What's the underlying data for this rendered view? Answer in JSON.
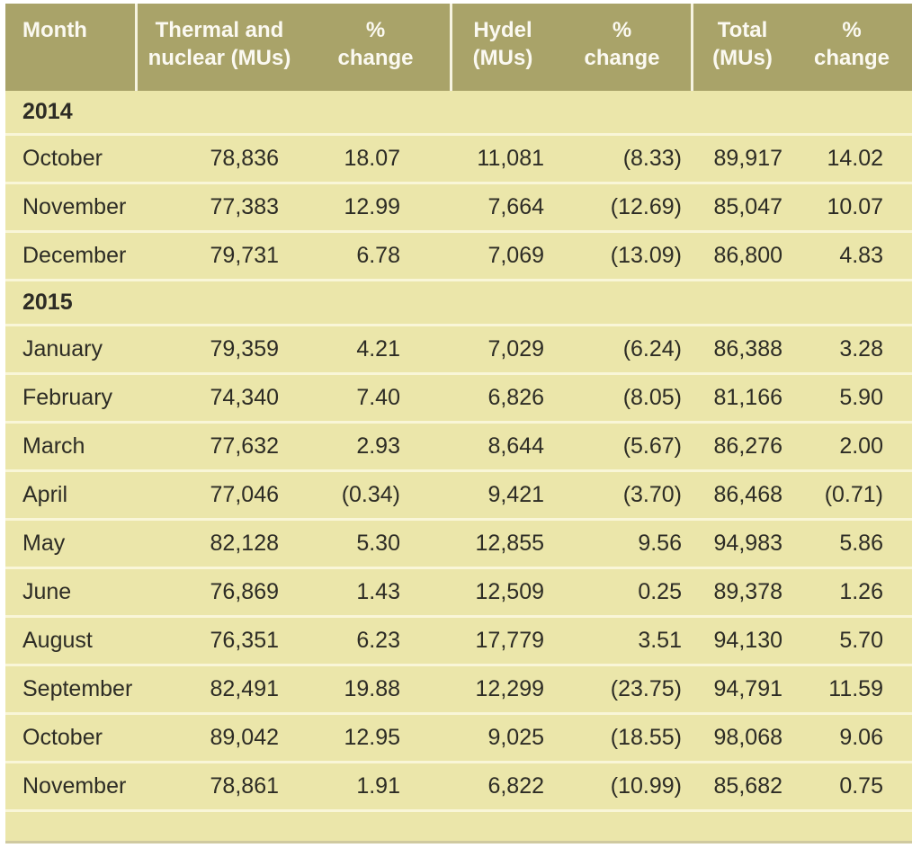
{
  "colors": {
    "page_bg": "#ffffff",
    "header_bg": "#a9a369",
    "header_text": "#fbf9f1",
    "body_bg": "#ebe6aa",
    "row_line": "#f9f6d8",
    "divider": "#f6f3e0",
    "text": "#2d2c25",
    "bottom_edge": "#cfc9a0"
  },
  "table": {
    "header": [
      {
        "line1": "Month",
        "line2": ""
      },
      {
        "line1": "Thermal and",
        "line2": "nuclear (MUs)"
      },
      {
        "line1": "%",
        "line2": "change"
      },
      {
        "line1": "Hydel",
        "line2": "(MUs)"
      },
      {
        "line1": "%",
        "line2": "change"
      },
      {
        "line1": "Total",
        "line2": "(MUs)"
      },
      {
        "line1": "%",
        "line2": "change"
      }
    ],
    "sections": [
      {
        "year": "2014",
        "rows": [
          {
            "month": "October",
            "values": [
              "78,836",
              "18.07",
              "11,081",
              "(8.33)",
              "89,917",
              "14.02"
            ]
          },
          {
            "month": "November",
            "values": [
              "77,383",
              "12.99",
              "7,664",
              "(12.69)",
              "85,047",
              "10.07"
            ]
          },
          {
            "month": "December",
            "values": [
              "79,731",
              "6.78",
              "7,069",
              "(13.09)",
              "86,800",
              "4.83"
            ]
          }
        ]
      },
      {
        "year": "2015",
        "rows": [
          {
            "month": "January",
            "values": [
              "79,359",
              "4.21",
              "7,029",
              "(6.24)",
              "86,388",
              "3.28"
            ]
          },
          {
            "month": "February",
            "values": [
              "74,340",
              "7.40",
              "6,826",
              "(8.05)",
              "81,166",
              "5.90"
            ]
          },
          {
            "month": "March",
            "values": [
              "77,632",
              "2.93",
              "8,644",
              "(5.67)",
              "86,276",
              "2.00"
            ]
          },
          {
            "month": "April",
            "values": [
              "77,046",
              "(0.34)",
              "9,421",
              "(3.70)",
              "86,468",
              "(0.71)"
            ]
          },
          {
            "month": "May",
            "values": [
              "82,128",
              "5.30",
              "12,855",
              "9.56",
              "94,983",
              "5.86"
            ]
          },
          {
            "month": "June",
            "values": [
              "76,869",
              "1.43",
              "12,509",
              "0.25",
              "89,378",
              "1.26"
            ]
          },
          {
            "month": "August",
            "values": [
              "76,351",
              "6.23",
              "17,779",
              "3.51",
              "94,130",
              "5.70"
            ]
          },
          {
            "month": "September",
            "values": [
              "82,491",
              "19.88",
              "12,299",
              "(23.75)",
              "94,791",
              "11.59"
            ]
          },
          {
            "month": "October",
            "values": [
              "89,042",
              "12.95",
              "9,025",
              "(18.55)",
              "98,068",
              "9.06"
            ]
          },
          {
            "month": "November",
            "values": [
              "78,861",
              "1.91",
              "6,822",
              "(10.99)",
              "85,682",
              "0.75"
            ]
          }
        ]
      }
    ]
  },
  "chart_data": {
    "type": "table",
    "columns": [
      "Month",
      "Thermal and nuclear (MUs)",
      "% change",
      "Hydel (MUs)",
      "% change",
      "Total (MUs)",
      "% change"
    ],
    "sections": [
      {
        "year": 2014,
        "rows": [
          {
            "month": "October",
            "thermal_nuclear_mus": 78836,
            "thermal_pct_change": 18.07,
            "hydel_mus": 11081,
            "hydel_pct_change": -8.33,
            "total_mus": 89917,
            "total_pct_change": 14.02
          },
          {
            "month": "November",
            "thermal_nuclear_mus": 77383,
            "thermal_pct_change": 12.99,
            "hydel_mus": 7664,
            "hydel_pct_change": -12.69,
            "total_mus": 85047,
            "total_pct_change": 10.07
          },
          {
            "month": "December",
            "thermal_nuclear_mus": 79731,
            "thermal_pct_change": 6.78,
            "hydel_mus": 7069,
            "hydel_pct_change": -13.09,
            "total_mus": 86800,
            "total_pct_change": 4.83
          }
        ]
      },
      {
        "year": 2015,
        "rows": [
          {
            "month": "January",
            "thermal_nuclear_mus": 79359,
            "thermal_pct_change": 4.21,
            "hydel_mus": 7029,
            "hydel_pct_change": -6.24,
            "total_mus": 86388,
            "total_pct_change": 3.28
          },
          {
            "month": "February",
            "thermal_nuclear_mus": 74340,
            "thermal_pct_change": 7.4,
            "hydel_mus": 6826,
            "hydel_pct_change": -8.05,
            "total_mus": 81166,
            "total_pct_change": 5.9
          },
          {
            "month": "March",
            "thermal_nuclear_mus": 77632,
            "thermal_pct_change": 2.93,
            "hydel_mus": 8644,
            "hydel_pct_change": -5.67,
            "total_mus": 86276,
            "total_pct_change": 2.0
          },
          {
            "month": "April",
            "thermal_nuclear_mus": 77046,
            "thermal_pct_change": -0.34,
            "hydel_mus": 9421,
            "hydel_pct_change": -3.7,
            "total_mus": 86468,
            "total_pct_change": -0.71
          },
          {
            "month": "May",
            "thermal_nuclear_mus": 82128,
            "thermal_pct_change": 5.3,
            "hydel_mus": 12855,
            "hydel_pct_change": 9.56,
            "total_mus": 94983,
            "total_pct_change": 5.86
          },
          {
            "month": "June",
            "thermal_nuclear_mus": 76869,
            "thermal_pct_change": 1.43,
            "hydel_mus": 12509,
            "hydel_pct_change": 0.25,
            "total_mus": 89378,
            "total_pct_change": 1.26
          },
          {
            "month": "August",
            "thermal_nuclear_mus": 76351,
            "thermal_pct_change": 6.23,
            "hydel_mus": 17779,
            "hydel_pct_change": 3.51,
            "total_mus": 94130,
            "total_pct_change": 5.7
          },
          {
            "month": "September",
            "thermal_nuclear_mus": 82491,
            "thermal_pct_change": 19.88,
            "hydel_mus": 12299,
            "hydel_pct_change": -23.75,
            "total_mus": 94791,
            "total_pct_change": 11.59
          },
          {
            "month": "October",
            "thermal_nuclear_mus": 89042,
            "thermal_pct_change": 12.95,
            "hydel_mus": 9025,
            "hydel_pct_change": -18.55,
            "total_mus": 98068,
            "total_pct_change": 9.06
          },
          {
            "month": "November",
            "thermal_nuclear_mus": 78861,
            "thermal_pct_change": 1.91,
            "hydel_mus": 6822,
            "hydel_pct_change": -10.99,
            "total_mus": 85682,
            "total_pct_change": 0.75
          }
        ]
      }
    ]
  }
}
